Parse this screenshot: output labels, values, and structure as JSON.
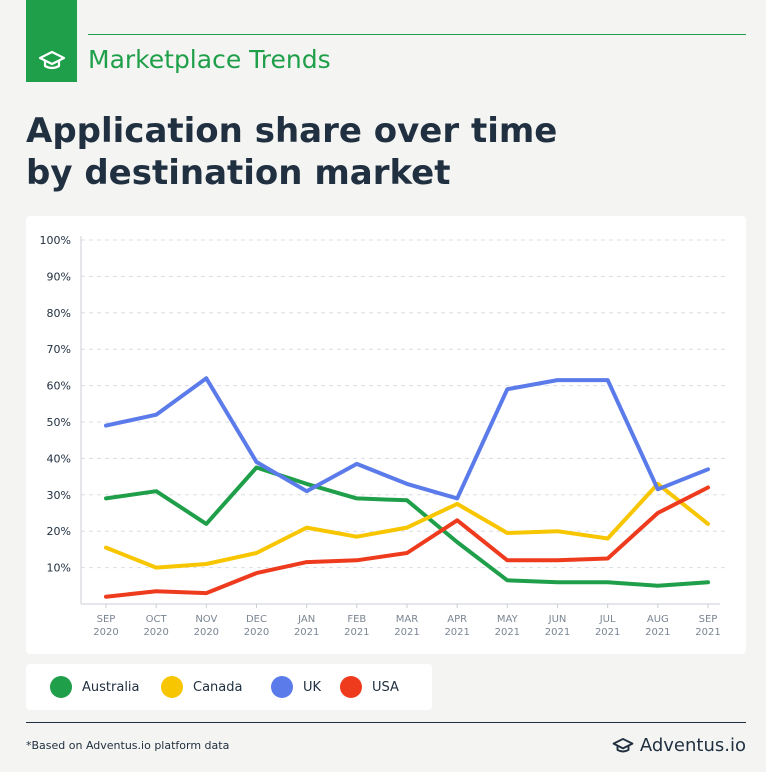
{
  "header": {
    "section_label": "Marketplace Trends",
    "title_line1": "Application share over time",
    "title_line2": "by destination market",
    "badge_icon": "graduation-cap-icon"
  },
  "colors": {
    "brand_green": "#1f9f4a",
    "text_dark": "#213040"
  },
  "chart_data": {
    "type": "line",
    "title": "Application share over time by destination market",
    "xlabel": "",
    "ylabel": "",
    "ylim": [
      0,
      100
    ],
    "grid": true,
    "legend_position": "bottom",
    "y_ticks": [
      "10%",
      "20%",
      "30%",
      "40%",
      "50%",
      "60%",
      "70%",
      "80%",
      "90%",
      "100%"
    ],
    "x": [
      [
        "SEP",
        "2020"
      ],
      [
        "OCT",
        "2020"
      ],
      [
        "NOV",
        "2020"
      ],
      [
        "DEC",
        "2020"
      ],
      [
        "JAN",
        "2021"
      ],
      [
        "FEB",
        "2021"
      ],
      [
        "MAR",
        "2021"
      ],
      [
        "APR",
        "2021"
      ],
      [
        "MAY",
        "2021"
      ],
      [
        "JUN",
        "2021"
      ],
      [
        "JUL",
        "2021"
      ],
      [
        "AUG",
        "2021"
      ],
      [
        "SEP",
        "2021"
      ]
    ],
    "series": [
      {
        "name": "Australia",
        "color": "#1f9f4a",
        "values": [
          29,
          31,
          22,
          37.5,
          33,
          29,
          28.5,
          17,
          6.5,
          6,
          6,
          5,
          6
        ]
      },
      {
        "name": "Canada",
        "color": "#f7c600",
        "values": [
          15.5,
          10,
          11,
          14,
          21,
          18.5,
          21,
          27.5,
          19.5,
          20,
          18,
          33,
          22
        ]
      },
      {
        "name": "UK",
        "color": "#5b7bea",
        "values": [
          49,
          52,
          62,
          39,
          31,
          38.5,
          33,
          29,
          59,
          61.5,
          61.5,
          31.5,
          37
        ]
      },
      {
        "name": "USA",
        "color": "#ee3b1e",
        "values": [
          2,
          3.5,
          3,
          8.5,
          11.5,
          12,
          14,
          23,
          12,
          12,
          12.5,
          25,
          32
        ]
      }
    ]
  },
  "legend": {
    "items": [
      {
        "label": "Australia",
        "color": "#1f9f4a"
      },
      {
        "label": "Canada",
        "color": "#f7c600"
      },
      {
        "label": "UK",
        "color": "#5b7bea"
      },
      {
        "label": "USA",
        "color": "#ee3b1e"
      }
    ]
  },
  "footer": {
    "footnote": "*Based on Adventus.io platform data",
    "brand": "Adventus.io",
    "brand_icon": "graduation-cap-icon"
  }
}
